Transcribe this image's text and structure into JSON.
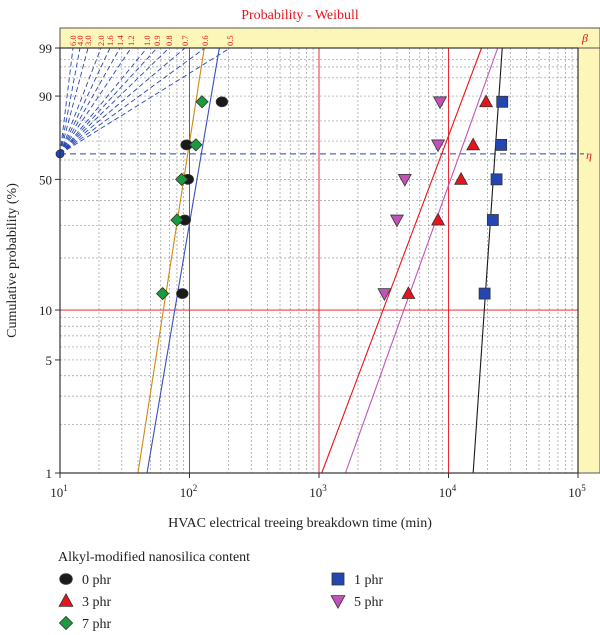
{
  "chart_data": {
    "type": "scatter",
    "title": "Probability - Weibull",
    "xlabel": "HVAC electrical treeing breakdown time (min)",
    "ylabel": "Cumulative probability (%)",
    "x_scale": "log",
    "y_scale": "weibull",
    "xlim": [
      10,
      100000
    ],
    "ylim": [
      1,
      99
    ],
    "x_ticks": [
      {
        "base": "10",
        "exp": "1"
      },
      {
        "base": "10",
        "exp": "2"
      },
      {
        "base": "10",
        "exp": "3"
      },
      {
        "base": "10",
        "exp": "4"
      },
      {
        "base": "10",
        "exp": "5"
      }
    ],
    "y_ticks": [
      "1",
      "5",
      "10",
      "50",
      "90",
      "99"
    ],
    "grid": true,
    "beta_label": "β",
    "eta_label": "η",
    "beta_scale": [
      "6.0",
      "4.0",
      "3.0",
      "2.0",
      "1.6",
      "1.4",
      "1.2",
      "1.0",
      "0.9",
      "0.8",
      "0.7",
      "0.6",
      "0.5"
    ],
    "legend_title": "Alkyl-modified nanosilica content",
    "series": [
      {
        "name": "0 phr",
        "marker": "circle",
        "color": "#1a1a1a",
        "x": [
          88,
          92,
          97,
          95,
          178
        ],
        "y": [
          12.5,
          32,
          50,
          68,
          88
        ]
      },
      {
        "name": "3 phr",
        "marker": "triangle-up",
        "color": "#e8141c",
        "x": [
          4900,
          8300,
          12500,
          15500,
          19500
        ],
        "y": [
          12.5,
          32,
          50,
          68,
          88
        ]
      },
      {
        "name": "7 phr",
        "marker": "diamond",
        "color": "#1b9a3e",
        "x": [
          62,
          80,
          87,
          112,
          125
        ],
        "y": [
          12.5,
          32,
          50,
          68,
          88
        ]
      },
      {
        "name": "1 phr",
        "marker": "square",
        "color": "#2346b0",
        "x": [
          19000,
          22000,
          23500,
          25500,
          26000
        ],
        "y": [
          12.5,
          32,
          50,
          68,
          88
        ]
      },
      {
        "name": "5 phr",
        "marker": "triangle-down",
        "color": "#c153b8",
        "x": [
          3200,
          4000,
          4600,
          8300,
          8600
        ],
        "y": [
          12.5,
          32,
          50,
          68,
          88
        ]
      }
    ],
    "fit_lines": [
      {
        "color": "#1a1a1a",
        "x1": 15500,
        "y1": 1,
        "x2": 26000,
        "y2": 99
      },
      {
        "color": "#e8141c",
        "x1": 1050,
        "y1": 1,
        "x2": 18000,
        "y2": 99
      },
      {
        "color": "#c153b8",
        "x1": 1600,
        "y1": 1,
        "x2": 24000,
        "y2": 99
      },
      {
        "color": "#d08a10",
        "x1": 40,
        "y1": 1,
        "x2": 130,
        "y2": 99
      },
      {
        "color": "#3a4fb8",
        "x1": 47,
        "y1": 1,
        "x2": 170,
        "y2": 99
      }
    ],
    "reference_lines": {
      "x": [
        100,
        1000,
        10000
      ],
      "y": [
        10
      ]
    }
  }
}
